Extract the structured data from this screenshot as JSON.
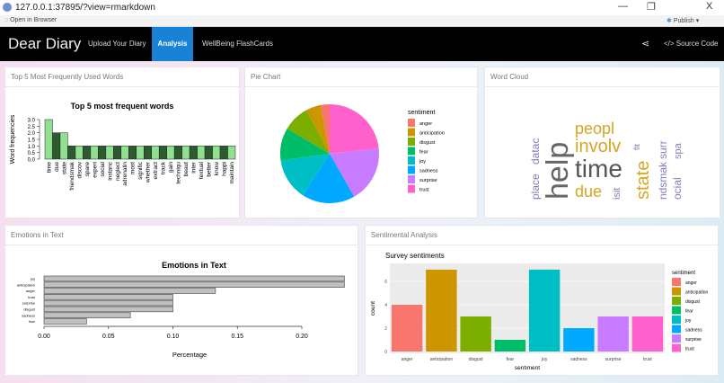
{
  "window": {
    "url": "127.0.0.1:37895/?view=rmarkdown",
    "minimize": "—",
    "restore": "❐",
    "close": "X"
  },
  "toolbar": {
    "open_in_browser": "Open in Browser",
    "publish": "Publish"
  },
  "navbar": {
    "brand": "Dear Diary",
    "items": [
      {
        "label": "Upload Your Diary"
      },
      {
        "label": "Analysis",
        "active": true
      },
      {
        "label": "WellBeing FlashCards"
      }
    ],
    "share_icon": "share-icon",
    "source_code": "Source Code"
  },
  "panels": {
    "words": "Top 5 Most Frequently Used Words",
    "pie": "Pie Chart",
    "cloud": "Word Cloud",
    "emotions": "Emotions in Text",
    "sentiment": "Sentimental Analysis"
  },
  "colors": {
    "anger": "#f8766d",
    "anticipation": "#cd9600",
    "disgust": "#7cae00",
    "fear": "#00be67",
    "joy": "#00bfc4",
    "sadness": "#00a9ff",
    "surprise": "#c77cff",
    "trust": "#ff61cc"
  },
  "word_cloud": [
    {
      "w": "help",
      "c": "#666"
    },
    {
      "w": "time",
      "c": "#555"
    },
    {
      "w": "involv",
      "c": "#d8a520"
    },
    {
      "w": "state",
      "c": "#d8a520"
    },
    {
      "w": "due",
      "c": "#d8a520"
    },
    {
      "w": "peopl",
      "c": "#d8a520"
    },
    {
      "w": "place",
      "c": "#7f7fb8"
    },
    {
      "w": "datac",
      "c": "#7f7fb8"
    },
    {
      "w": "fit",
      "c": "#7f7fb8"
    },
    {
      "w": "isit",
      "c": "#7f7fb8"
    },
    {
      "w": "ndsmak",
      "c": "#7f7fb8"
    },
    {
      "w": "surr",
      "c": "#7f7fb8"
    },
    {
      "w": "spa",
      "c": "#7f7fb8"
    },
    {
      "w": "ocial",
      "c": "#7f7fb8"
    }
  ],
  "chart_data": [
    {
      "type": "bar",
      "title": "Top 5 most frequent words",
      "ylabel": "Word frequencies",
      "xlabel": "",
      "ylim": [
        0,
        3
      ],
      "yticks": [
        "0.0",
        "0.5",
        "1.0",
        "1.5",
        "2.0",
        "2.5",
        "3.0"
      ],
      "categories": [
        "time",
        "due",
        "state",
        "friendsmak",
        "discov",
        "spare",
        "experi",
        "social",
        "instanc",
        "neglect",
        "adrenalin",
        "most",
        "signific",
        "whether",
        "extract",
        "track",
        "gain",
        "techniqu",
        "beaut",
        "inter",
        "textual",
        "better",
        "know",
        "happi",
        "maintain"
      ],
      "values": [
        3,
        2,
        2,
        1,
        1,
        1,
        1,
        1,
        1,
        1,
        1,
        1,
        1,
        1,
        1,
        1,
        1,
        1,
        1,
        1,
        1,
        1,
        1,
        1,
        1
      ]
    },
    {
      "type": "pie",
      "legend_title": "sentiment",
      "legend": "right",
      "categories": [
        "anger",
        "anticipation",
        "disgust",
        "fear",
        "joy",
        "sadness",
        "surprise",
        "trust"
      ],
      "values": [
        3,
        5,
        9,
        11,
        14,
        18,
        19,
        24
      ]
    },
    {
      "type": "bar",
      "orientation": "horizontal",
      "title": "Emotions in Text",
      "xlabel": "Percentage",
      "xlim": [
        0,
        0.233
      ],
      "xticks": [
        "0.00",
        "0.05",
        "0.10",
        "0.15",
        "0.20"
      ],
      "categories": [
        "joy",
        "anticipation",
        "anger",
        "trust",
        "surprise",
        "disgust",
        "sadness",
        "fear"
      ],
      "values": [
        0.233,
        0.233,
        0.133,
        0.1,
        0.1,
        0.1,
        0.067,
        0.033
      ]
    },
    {
      "type": "bar",
      "title": "Survey sentiments",
      "xlabel": "sentiment",
      "ylabel": "count",
      "ylim": [
        0,
        7
      ],
      "yticks": [
        "0",
        "2",
        "4",
        "6"
      ],
      "legend_title": "sentiment",
      "legend": "right",
      "categories": [
        "anger",
        "anticipation",
        "disgust",
        "fear",
        "joy",
        "sadness",
        "surprise",
        "trust"
      ],
      "values": [
        4,
        7,
        3,
        1,
        7,
        2,
        3,
        3
      ]
    }
  ]
}
